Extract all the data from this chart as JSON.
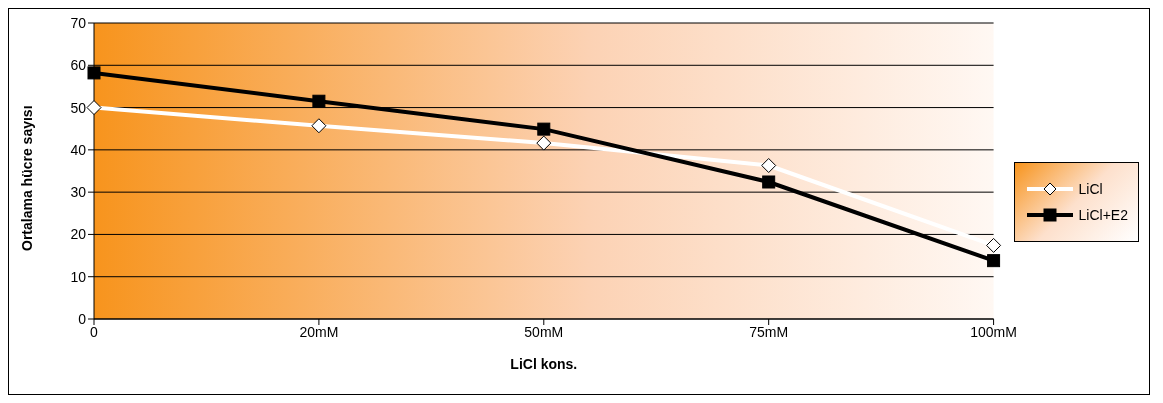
{
  "chart_data": {
    "type": "line",
    "xlabel": "LiCl kons.",
    "ylabel": "Ortalama hücre sayısı",
    "categories": [
      "0",
      "20mM",
      "50mM",
      "75mM",
      "100mM"
    ],
    "series": [
      {
        "name": "LiCl",
        "color": "#ffffff",
        "marker": "diamond",
        "values": [
          50.0,
          45.7,
          41.6,
          36.3,
          17.4
        ]
      },
      {
        "name": "LiCl+E2",
        "color": "#000000",
        "marker": "square",
        "values": [
          58.2,
          51.5,
          44.9,
          32.4,
          13.8
        ]
      }
    ],
    "ylim": [
      0,
      70
    ],
    "yticks": [
      0,
      10,
      20,
      30,
      40,
      50,
      60,
      70
    ],
    "grid": "y",
    "legend": "right"
  }
}
